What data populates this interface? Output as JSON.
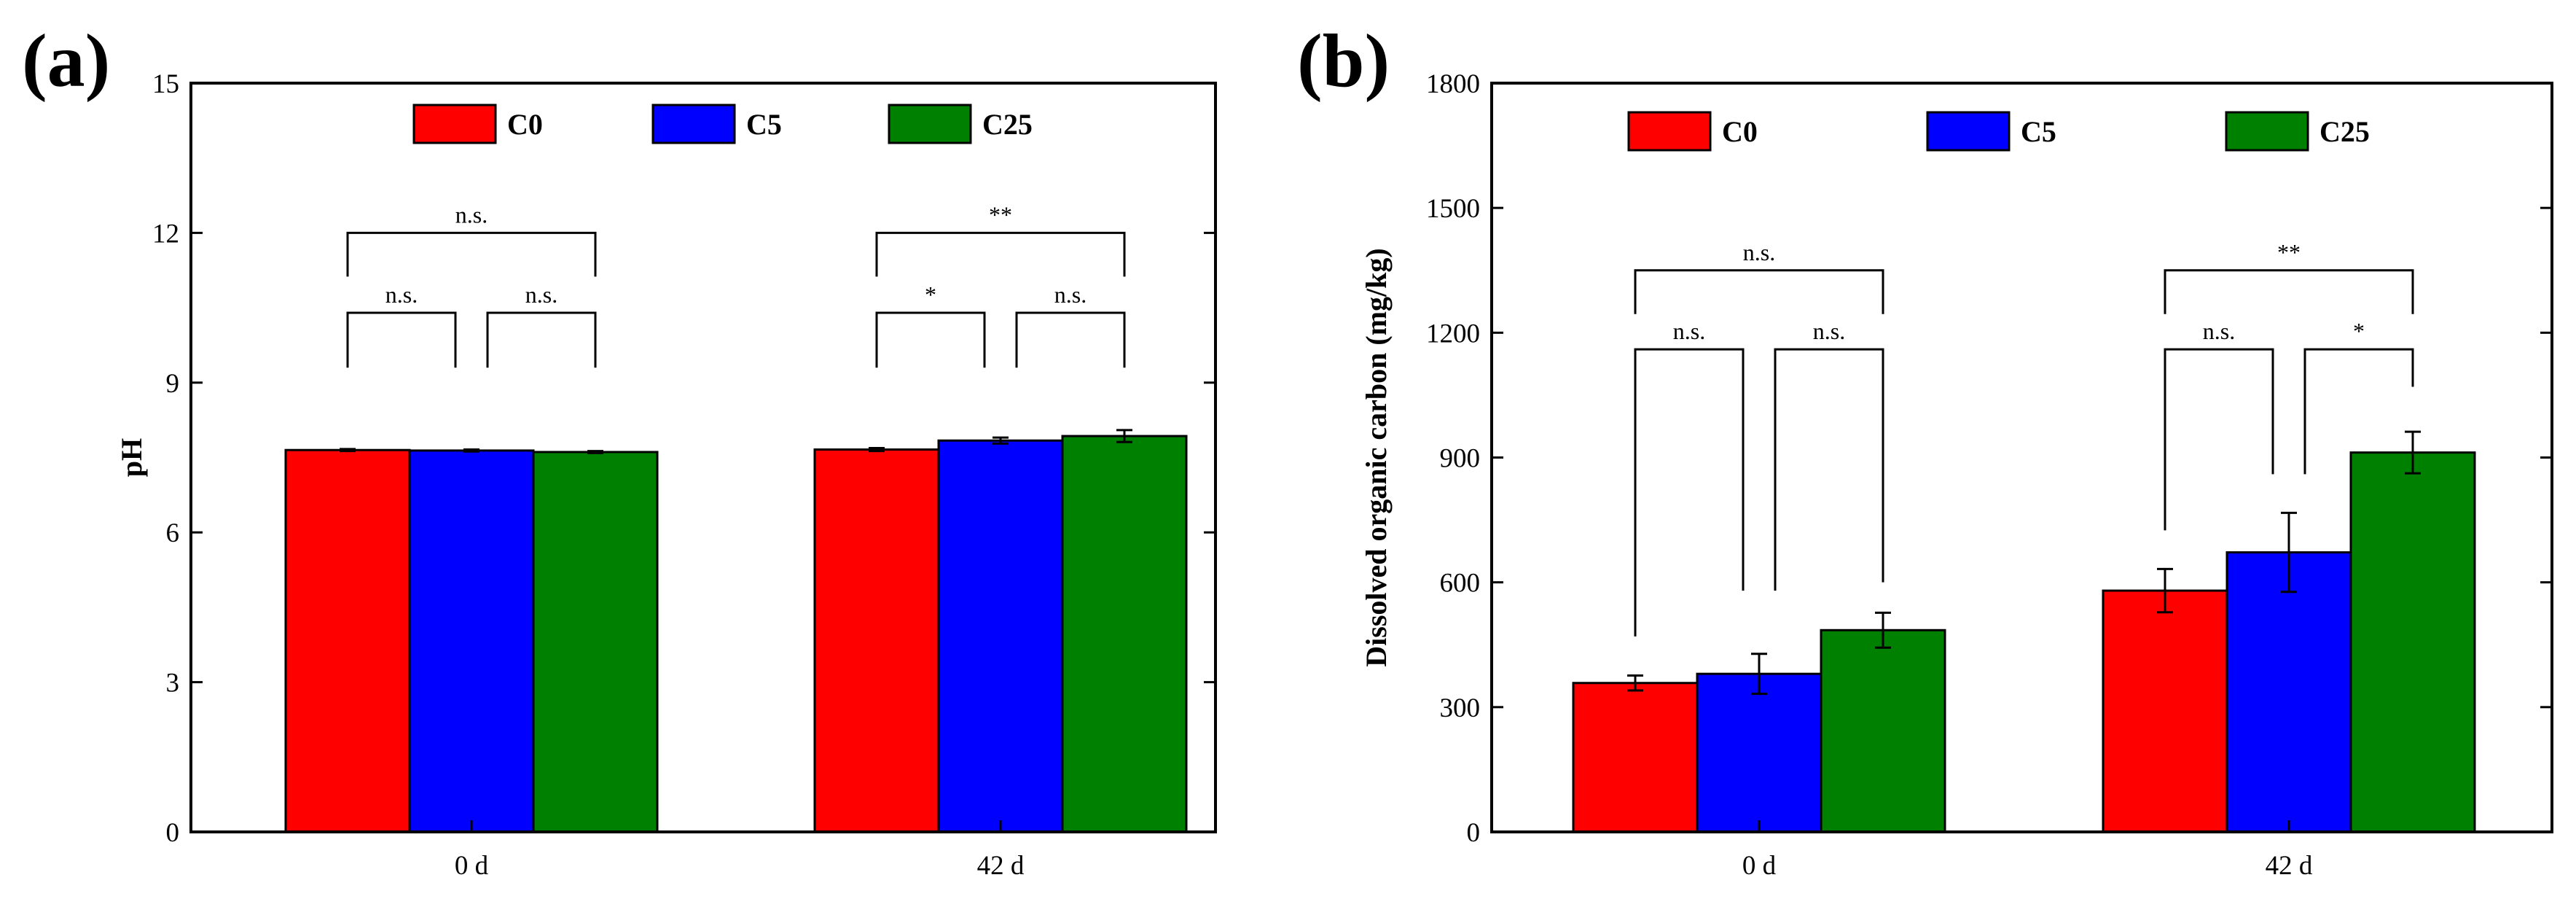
{
  "chart_data": [
    {
      "type": "bar",
      "panel_label": "(a)",
      "title": "",
      "xlabel": "",
      "ylabel": "pH",
      "ylim": [
        0,
        15
      ],
      "yticks": [
        0,
        3,
        6,
        9,
        12,
        15
      ],
      "categories": [
        "0 d",
        "42 d"
      ],
      "legend_position": "top-center",
      "series": [
        {
          "name": "C0",
          "color": "#ff0000",
          "values": [
            7.65,
            7.66
          ],
          "errors": [
            0.02,
            0.03
          ]
        },
        {
          "name": "C5",
          "color": "#0000ff",
          "values": [
            7.64,
            7.84
          ],
          "errors": [
            0.02,
            0.06
          ]
        },
        {
          "name": "C25",
          "color": "#008000",
          "values": [
            7.61,
            7.93
          ],
          "errors": [
            0.02,
            0.12
          ]
        }
      ],
      "significance": [
        {
          "group": 0,
          "from": 0,
          "to": 2,
          "label": "n.s.",
          "level": 12.0
        },
        {
          "group": 0,
          "from": 0,
          "to": 1,
          "label": "n.s.",
          "level": 10.4,
          "left_base": 9.3,
          "right_base": 9.3
        },
        {
          "group": 0,
          "from": 1,
          "to": 2,
          "label": "n.s.",
          "level": 10.4,
          "left_base": 9.3,
          "right_base": 9.3
        },
        {
          "group": 1,
          "from": 0,
          "to": 2,
          "label": "**",
          "level": 12.0
        },
        {
          "group": 1,
          "from": 0,
          "to": 1,
          "label": "*",
          "level": 10.4,
          "left_base": 9.3,
          "right_base": 9.3
        },
        {
          "group": 1,
          "from": 1,
          "to": 2,
          "label": "n.s.",
          "level": 10.4,
          "left_base": 9.3,
          "right_base": 9.3
        }
      ]
    },
    {
      "type": "bar",
      "panel_label": "(b)",
      "title": "",
      "xlabel": "",
      "ylabel": "Dissolved organic carbon (mg/kg)",
      "ylim": [
        0,
        1800
      ],
      "yticks": [
        0,
        300,
        600,
        900,
        1200,
        1500,
        1800
      ],
      "categories": [
        "0 d",
        "42 d"
      ],
      "legend_position": "top-center",
      "series": [
        {
          "name": "C0",
          "color": "#ff0000",
          "values": [
            358,
            580
          ],
          "errors": [
            18,
            52
          ]
        },
        {
          "name": "C5",
          "color": "#0000ff",
          "values": [
            380,
            672
          ],
          "errors": [
            48,
            95
          ]
        },
        {
          "name": "C25",
          "color": "#008000",
          "values": [
            485,
            912
          ],
          "errors": [
            42,
            50
          ]
        }
      ],
      "significance": [
        {
          "group": 0,
          "from": 0,
          "to": 2,
          "label": "n.s.",
          "level": 1350
        },
        {
          "group": 0,
          "from": 0,
          "to": 1,
          "label": "n.s.",
          "level": 1160,
          "left_base": 470,
          "right_base": 580
        },
        {
          "group": 0,
          "from": 1,
          "to": 2,
          "label": "n.s.",
          "level": 1160,
          "left_base": 580,
          "right_base": 600
        },
        {
          "group": 1,
          "from": 0,
          "to": 2,
          "label": "**",
          "level": 1350
        },
        {
          "group": 1,
          "from": 0,
          "to": 1,
          "label": "n.s.",
          "level": 1160,
          "left_base": 725,
          "right_base": 860
        },
        {
          "group": 1,
          "from": 1,
          "to": 2,
          "label": "*",
          "level": 1160,
          "left_base": 860,
          "right_base": 1070
        }
      ]
    }
  ]
}
